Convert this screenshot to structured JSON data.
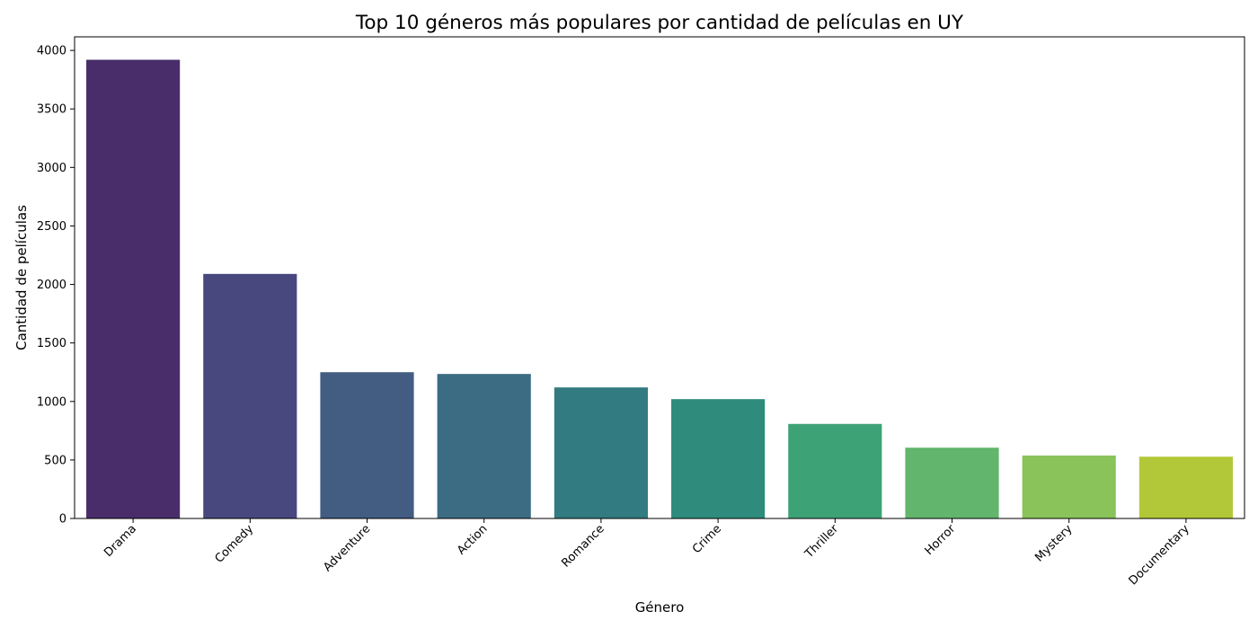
{
  "chart_data": {
    "type": "bar",
    "title": "Top 10 géneros más populares por cantidad de películas en UY",
    "xlabel": "Género",
    "ylabel": "Cantidad de películas",
    "categories": [
      "Drama",
      "Comedy",
      "Adventure",
      "Action",
      "Romance",
      "Crime",
      "Thriller",
      "Horror",
      "Mystery",
      "Documentary"
    ],
    "values": [
      3920,
      2090,
      1250,
      1235,
      1120,
      1020,
      808,
      605,
      538,
      528
    ],
    "ylim": [
      0,
      4116
    ],
    "yticks": [
      0,
      500,
      1000,
      1500,
      2000,
      2500,
      3000,
      3500,
      4000
    ],
    "colors": [
      "#482d6a",
      "#48487e",
      "#425c82",
      "#3b6c83",
      "#327b80",
      "#2f8c7c",
      "#3ea277",
      "#62b56c",
      "#89c35a",
      "#b3c838"
    ],
    "grid": false,
    "legend": "none"
  }
}
